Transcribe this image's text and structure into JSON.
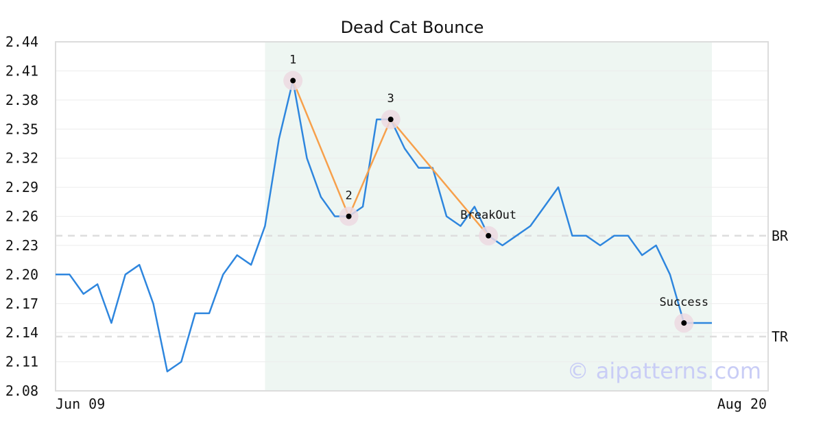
{
  "chart_data": {
    "type": "line",
    "title": "Dead Cat Bounce",
    "xlabel": "",
    "ylabel": "",
    "ylim": [
      2.08,
      2.44
    ],
    "yticks": [
      "2.44",
      "2.41",
      "2.38",
      "2.35",
      "2.32",
      "2.29",
      "2.26",
      "2.23",
      "2.20",
      "2.17",
      "2.14",
      "2.11",
      "2.08"
    ],
    "x_tick_labels": [
      {
        "index": 0,
        "label": "Jun 09"
      },
      {
        "index": 47,
        "label": "Aug 20"
      }
    ],
    "grid": true,
    "series": [
      {
        "values": [
          2.2,
          2.2,
          2.18,
          2.19,
          2.15,
          2.2,
          2.21,
          2.17,
          2.1,
          2.11,
          2.16,
          2.16,
          2.2,
          2.22,
          2.21,
          2.25,
          2.34,
          2.4,
          2.32,
          2.28,
          2.26,
          2.26,
          2.27,
          2.36,
          2.36,
          2.33,
          2.31,
          2.31,
          2.26,
          2.25,
          2.27,
          2.24,
          2.23,
          2.24,
          2.25,
          2.27,
          2.29,
          2.24,
          2.24,
          2.23,
          2.24,
          2.24,
          2.22,
          2.23,
          2.2,
          2.15,
          2.15,
          2.15
        ]
      }
    ],
    "pattern_region": {
      "start_index": 15,
      "end_index": 47
    },
    "pattern_points": [
      {
        "index": 17,
        "value": 2.4,
        "label": "1"
      },
      {
        "index": 21,
        "value": 2.26,
        "label": "2"
      },
      {
        "index": 24,
        "value": 2.36,
        "label": "3"
      },
      {
        "index": 31,
        "value": 2.24,
        "label": "BreakOut"
      },
      {
        "index": 45,
        "value": 2.15,
        "label": "Success"
      }
    ],
    "pattern_lines": [
      [
        17,
        21
      ],
      [
        21,
        24
      ],
      [
        24,
        31
      ]
    ],
    "reference_lines": [
      {
        "value": 2.24,
        "label": "BR"
      },
      {
        "value": 2.136,
        "label": "TR"
      }
    ],
    "colors": {
      "price": "#2e86de",
      "pattern": "#f7a04b",
      "region": "#eef6f2",
      "marker_halo": "#ecd9e2",
      "reference": "#dddddd"
    }
  },
  "watermark": "© aipatterns.com"
}
